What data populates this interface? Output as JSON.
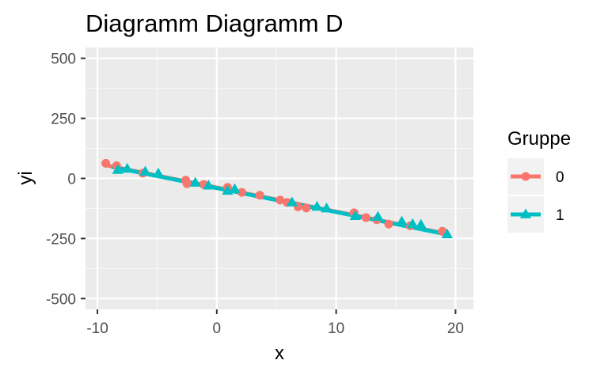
{
  "chart_data": {
    "type": "scatter",
    "title": "Diagramm Diagramm D",
    "xlabel": "x",
    "ylabel": "yi",
    "xlim": [
      -11,
      21.5
    ],
    "ylim": [
      -545,
      545
    ],
    "x_ticks": [
      -10,
      0,
      10,
      20
    ],
    "y_ticks": [
      500,
      250,
      0,
      -250,
      -500
    ],
    "grid": true,
    "legend": {
      "title": "Gruppe",
      "position": "right"
    },
    "series": [
      {
        "name": "0",
        "color": "#F8766D",
        "marker": "circle",
        "fit": {
          "x": [
            -9.3,
            18.9
          ],
          "y": [
            55,
            -227
          ]
        },
        "points": [
          {
            "x": -9.3,
            "y": 63
          },
          {
            "x": -8.4,
            "y": 53
          },
          {
            "x": -6.2,
            "y": 22
          },
          {
            "x": -2.6,
            "y": -7
          },
          {
            "x": -2.5,
            "y": -22
          },
          {
            "x": -1.1,
            "y": -25
          },
          {
            "x": 0.9,
            "y": -37
          },
          {
            "x": 2.1,
            "y": -58
          },
          {
            "x": 3.6,
            "y": -70
          },
          {
            "x": 5.3,
            "y": -90
          },
          {
            "x": 5.9,
            "y": -100
          },
          {
            "x": 6.8,
            "y": -118
          },
          {
            "x": 7.5,
            "y": -123
          },
          {
            "x": 11.5,
            "y": -143
          },
          {
            "x": 12.5,
            "y": -163
          },
          {
            "x": 13.4,
            "y": -172
          },
          {
            "x": 14.4,
            "y": -190
          },
          {
            "x": 16.2,
            "y": -197
          },
          {
            "x": 18.9,
            "y": -220
          }
        ]
      },
      {
        "name": "1",
        "color": "#00BFC4",
        "marker": "triangle",
        "fit": {
          "x": [
            -8.8,
            19.3
          ],
          "y": [
            48,
            -233
          ]
        },
        "points": [
          {
            "x": -8.3,
            "y": 35
          },
          {
            "x": -7.5,
            "y": 40
          },
          {
            "x": -6.0,
            "y": 28
          },
          {
            "x": -4.9,
            "y": 20
          },
          {
            "x": -1.8,
            "y": -18
          },
          {
            "x": -0.7,
            "y": -30
          },
          {
            "x": 0.9,
            "y": -52
          },
          {
            "x": 1.5,
            "y": -45
          },
          {
            "x": 6.3,
            "y": -100
          },
          {
            "x": 8.4,
            "y": -118
          },
          {
            "x": 9.2,
            "y": -125
          },
          {
            "x": 11.6,
            "y": -157
          },
          {
            "x": 13.5,
            "y": -160
          },
          {
            "x": 15.5,
            "y": -180
          },
          {
            "x": 16.4,
            "y": -190
          },
          {
            "x": 17.1,
            "y": -193
          },
          {
            "x": 19.3,
            "y": -233
          }
        ]
      }
    ]
  }
}
